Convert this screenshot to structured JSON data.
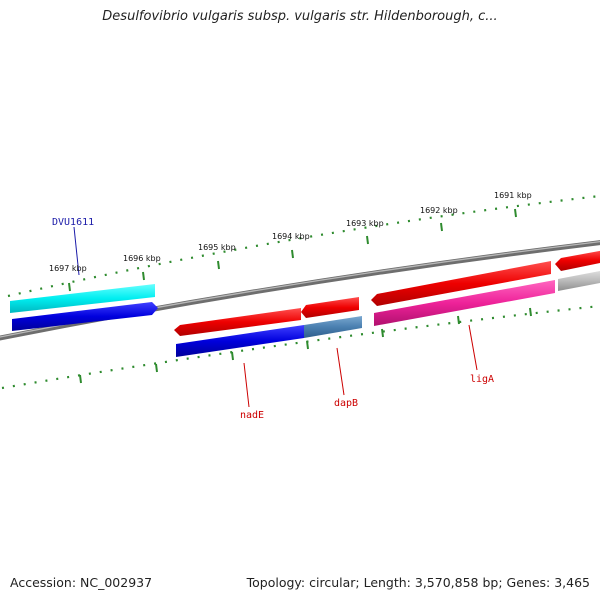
{
  "title": "Desulfovibrio vulgaris subsp. vulgaris str. Hildenborough, c...",
  "footer": {
    "accession": "Accession: NC_002937",
    "stats": "Topology: circular; Length: 3,570,858 bp; Genes: 3,465"
  },
  "scale": {
    "ticks": [
      {
        "label": "1691 kbp"
      },
      {
        "label": "1692 kbp"
      },
      {
        "label": "1693 kbp"
      },
      {
        "label": "1694 kbp"
      },
      {
        "label": "1695 kbp"
      },
      {
        "label": "1696 kbp"
      },
      {
        "label": "1697 kbp"
      }
    ]
  },
  "genes": [
    {
      "name": "DVU1611",
      "color": "#1a1aa8",
      "fill": "#2222ee"
    },
    {
      "name": "nadE",
      "color": "#cc0000",
      "fill": "#0000dd"
    },
    {
      "name": "dapB",
      "color": "#cc0000",
      "fill": "#4a7fb0"
    },
    {
      "name": "ligA",
      "color": "#cc0000",
      "fill": "#ee2299"
    }
  ],
  "colors": {
    "tick": "#2e8b2e",
    "backbone": "#888888",
    "red_feature": "#ee0000",
    "cyan_feature": "#00e8ee",
    "grey_feature": "#bbbbbb"
  }
}
